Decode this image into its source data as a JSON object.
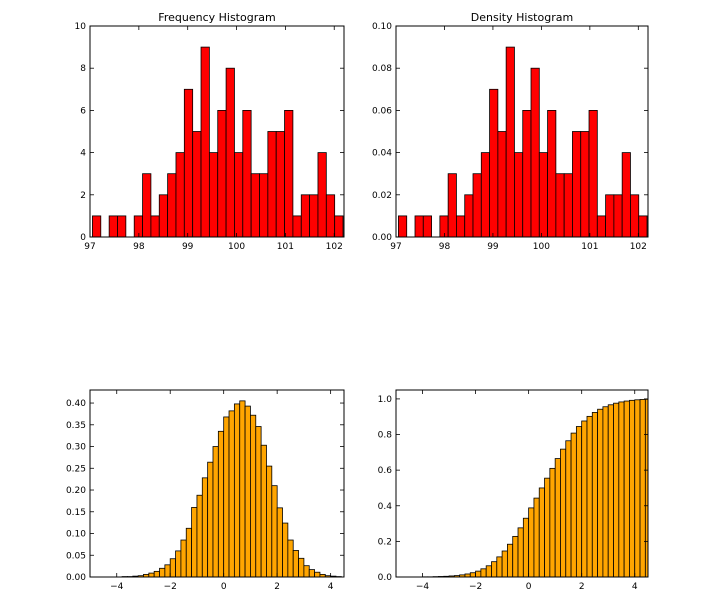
{
  "chart_data": [
    {
      "type": "bar",
      "title": "Frequency Histogram",
      "bar_color": "#ff0000",
      "xlim": [
        97,
        102.2
      ],
      "ylim": [
        0,
        10
      ],
      "xticks": [
        97,
        98,
        99,
        100,
        101,
        102
      ],
      "yticks": [
        0,
        2,
        4,
        6,
        8,
        10
      ],
      "ytick_labels": [
        "0",
        "2",
        "4",
        "6",
        "8",
        "10"
      ],
      "bin_start": 97.05,
      "bin_width": 0.171,
      "values": [
        1,
        0,
        1,
        1,
        0,
        1,
        3,
        1,
        2,
        3,
        4,
        7,
        5,
        9,
        4,
        6,
        8,
        4,
        6,
        3,
        3,
        5,
        5,
        6,
        1,
        2,
        2,
        4,
        2,
        1
      ]
    },
    {
      "type": "bar",
      "title": "Density Histogram",
      "bar_color": "#ff0000",
      "xlim": [
        97,
        102.2
      ],
      "ylim": [
        0,
        0.1
      ],
      "xticks": [
        97,
        98,
        99,
        100,
        101,
        102
      ],
      "yticks": [
        0,
        0.02,
        0.04,
        0.06,
        0.08,
        0.1
      ],
      "ytick_labels": [
        "0.00",
        "0.02",
        "0.04",
        "0.06",
        "0.08",
        "0.10"
      ],
      "bin_start": 97.05,
      "bin_width": 0.171,
      "values": [
        0.01,
        0,
        0.01,
        0.01,
        0,
        0.01,
        0.03,
        0.01,
        0.02,
        0.03,
        0.04,
        0.07,
        0.05,
        0.09,
        0.04,
        0.06,
        0.08,
        0.04,
        0.06,
        0.03,
        0.03,
        0.05,
        0.05,
        0.06,
        0.01,
        0.02,
        0.02,
        0.04,
        0.02,
        0.01
      ]
    },
    {
      "type": "bar",
      "title": "",
      "bar_color": "#ffa500",
      "xlim": [
        -5,
        4.5
      ],
      "ylim": [
        0,
        0.43
      ],
      "xticks": [
        -4,
        -2,
        0,
        2,
        4
      ],
      "xtick_labels": [
        "−4",
        "−2",
        "0",
        "2",
        "4"
      ],
      "yticks": [
        0,
        0.05,
        0.1,
        0.15,
        0.2,
        0.25,
        0.3,
        0.35,
        0.4
      ],
      "ytick_labels": [
        "0.00",
        "0.05",
        "0.10",
        "0.15",
        "0.20",
        "0.25",
        "0.30",
        "0.35",
        "0.40"
      ],
      "bin_start": -3.8,
      "bin_width": 0.2,
      "values": [
        0.001,
        0.001,
        0.002,
        0.003,
        0.006,
        0.009,
        0.013,
        0.02,
        0.028,
        0.042,
        0.06,
        0.085,
        0.112,
        0.16,
        0.188,
        0.228,
        0.264,
        0.3,
        0.335,
        0.368,
        0.382,
        0.398,
        0.405,
        0.393,
        0.372,
        0.346,
        0.303,
        0.255,
        0.21,
        0.159,
        0.124,
        0.085,
        0.061,
        0.043,
        0.026,
        0.017,
        0.011,
        0.006,
        0.003,
        0.002,
        0.001
      ]
    },
    {
      "type": "bar",
      "title": "",
      "bar_color": "#ffa500",
      "xlim": [
        -5,
        4.5
      ],
      "ylim": [
        0,
        1.05
      ],
      "xticks": [
        -4,
        -2,
        0,
        2,
        4
      ],
      "xtick_labels": [
        "−4",
        "−2",
        "0",
        "2",
        "4"
      ],
      "yticks": [
        0,
        0.2,
        0.4,
        0.6,
        0.8,
        1.0
      ],
      "ytick_labels": [
        "0.0",
        "0.2",
        "0.4",
        "0.6",
        "0.8",
        "1.0"
      ],
      "bin_start": -4.0,
      "bin_width": 0.2,
      "values": [
        0.001,
        0.001,
        0.002,
        0.003,
        0.004,
        0.006,
        0.008,
        0.012,
        0.017,
        0.024,
        0.033,
        0.046,
        0.063,
        0.086,
        0.113,
        0.146,
        0.184,
        0.228,
        0.276,
        0.33,
        0.388,
        0.443,
        0.5,
        0.555,
        0.61,
        0.665,
        0.718,
        0.765,
        0.808,
        0.845,
        0.876,
        0.902,
        0.924,
        0.942,
        0.956,
        0.967,
        0.976,
        0.983,
        0.988,
        0.992,
        0.995,
        0.997,
        0.998,
        0.999,
        0.999,
        1.0,
        1.0,
        1.0,
        1.0,
        1.0,
        1.0,
        1.0,
        1.0,
        1.0,
        1.0,
        1.0,
        1.0
      ]
    }
  ]
}
